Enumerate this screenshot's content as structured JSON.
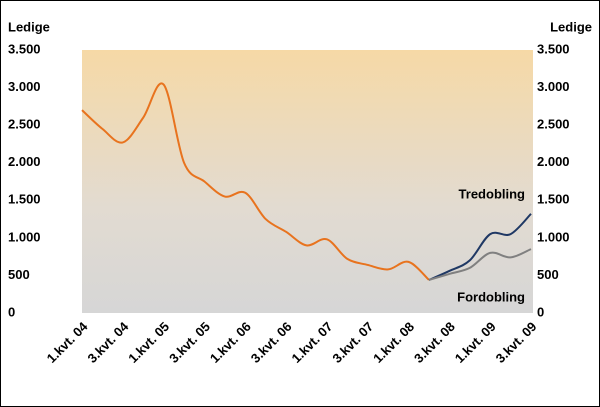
{
  "chart_data": {
    "type": "line",
    "y_label": "Ledige",
    "y2_label": "Ledige",
    "categories": [
      "1.kvt. 04",
      null,
      "3.kvt. 04",
      null,
      "1.kvt. 05",
      null,
      "3.kvt. 05",
      null,
      "1.kvt. 06",
      null,
      "3.kvt. 06",
      null,
      "1.kvt. 07",
      null,
      "3.kvt. 07",
      null,
      "1.kvt. 08",
      null,
      "3.kvt. 08",
      null,
      "1.kvt. 09",
      null,
      "3.kvt. 09"
    ],
    "series": [
      {
        "color": "#e8731e",
        "values": [
          2700,
          2450,
          2270,
          2600,
          3040,
          2000,
          1750,
          1550,
          1600,
          1250,
          1080,
          900,
          980,
          720,
          640,
          580,
          680,
          440,
          null,
          null,
          null,
          null,
          null
        ]
      },
      {
        "name": "Tredobling",
        "color": "#1f3864",
        "values": [
          null,
          null,
          null,
          null,
          null,
          null,
          null,
          null,
          null,
          null,
          null,
          null,
          null,
          null,
          null,
          null,
          null,
          440,
          560,
          700,
          1050,
          1050,
          1320
        ]
      },
      {
        "name": "Fordobling",
        "color": "#808080",
        "values": [
          null,
          null,
          null,
          null,
          null,
          null,
          null,
          null,
          null,
          null,
          null,
          null,
          null,
          null,
          null,
          null,
          null,
          440,
          520,
          600,
          800,
          740,
          850
        ]
      }
    ],
    "ylim": [
      0,
      3500
    ],
    "yticks": [
      0,
      500,
      {
        "value": 1000,
        "label": "1.000"
      },
      {
        "value": 1500,
        "label": "1.500"
      },
      {
        "value": 2000,
        "label": "2.000"
      },
      {
        "value": 2500,
        "label": "2.500"
      },
      {
        "value": 3000,
        "label": "3.000"
      },
      {
        "value": 3500,
        "label": "3.500"
      }
    ],
    "y2lim": [
      0,
      3500
    ],
    "y2ticks": [
      0,
      500,
      {
        "value": 1000,
        "label": "1.000"
      },
      {
        "value": 1500,
        "label": "1.500"
      },
      {
        "value": 2000,
        "label": "2.000"
      },
      {
        "value": 2500,
        "label": "2.500"
      },
      {
        "value": 3000,
        "label": "3.000"
      },
      {
        "value": 3500,
        "label": "3.500"
      }
    ]
  }
}
